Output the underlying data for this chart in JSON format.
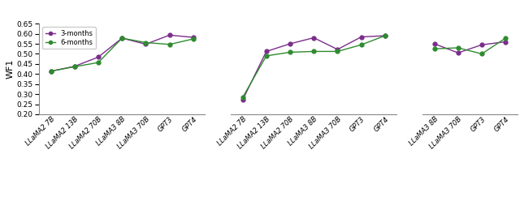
{
  "subplot1": {
    "labels": [
      "LLaMA2 7B",
      "LLaMA2 13B",
      "LLaMA2 70B",
      "LLaMA3 8B",
      "LLaMA3 70B",
      "GPT3",
      "GPT4"
    ],
    "three_months": [
      0.414,
      0.438,
      0.484,
      0.578,
      0.548,
      0.593,
      0.582
    ],
    "six_months": [
      0.414,
      0.436,
      0.457,
      0.578,
      0.556,
      0.547,
      0.574
    ]
  },
  "subplot2": {
    "labels": [
      "LLaMA2 7B",
      "LLaMA2 13B",
      "LLaMA2 70B",
      "LLaMA3 8B",
      "LLaMA3 70B",
      "GPT3",
      "GPT4"
    ],
    "three_months": [
      0.271,
      0.512,
      0.55,
      0.58,
      0.522,
      0.584,
      0.59
    ],
    "six_months": [
      0.283,
      0.49,
      0.508,
      0.512,
      0.512,
      0.545,
      0.59
    ]
  },
  "subplot3": {
    "labels": [
      "LLaMA3 8B",
      "LLaMA3 70B",
      "GPT3",
      "GPT4"
    ],
    "three_months": [
      0.55,
      0.505,
      0.545,
      0.56
    ],
    "six_months": [
      0.525,
      0.53,
      0.5,
      0.578
    ]
  },
  "color_3months": "#7B2D8B",
  "color_6months": "#2E8B2E",
  "ylim": [
    0.2,
    0.65
  ],
  "yticks": [
    0.2,
    0.25,
    0.3,
    0.35,
    0.4,
    0.45,
    0.5,
    0.55,
    0.6,
    0.65
  ],
  "ylabel": "WF1",
  "legend_3months": "3-months",
  "legend_6months": "6-months",
  "marker": "o",
  "markersize": 3.5,
  "linewidth": 1.0
}
